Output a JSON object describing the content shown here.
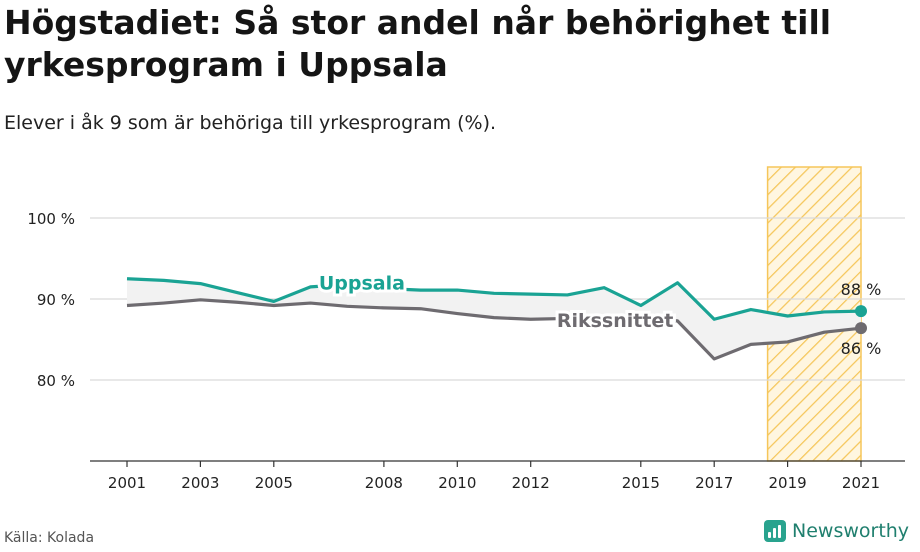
{
  "title": "Högstadiet: Så stor andel når behörighet till yrkesprogram i Uppsala",
  "subtitle": "Elever i åk 9 som är behöriga till yrkesprogram (%).",
  "source": "Källa: Kolada",
  "brand": "Newsworthy",
  "colors": {
    "uppsala": "#1aa394",
    "riket": "#6e6b70",
    "highlight": "#f5c65a",
    "grid": "#d9d9d9"
  },
  "chart_data": {
    "type": "line",
    "x": [
      2001,
      2002,
      2003,
      2004,
      2005,
      2006,
      2007,
      2008,
      2009,
      2010,
      2011,
      2012,
      2013,
      2014,
      2015,
      2016,
      2017,
      2018,
      2019,
      2020,
      2021
    ],
    "series": [
      {
        "name": "Uppsala",
        "values": [
          92.5,
          92.3,
          91.9,
          90.8,
          89.7,
          91.5,
          91.8,
          91.3,
          91.1,
          91.1,
          90.7,
          90.6,
          90.5,
          91.4,
          89.2,
          92.0,
          87.5,
          88.7,
          87.9,
          88.4,
          88.5
        ]
      },
      {
        "name": "Rikssnittet",
        "values": [
          89.2,
          89.5,
          89.9,
          89.6,
          89.2,
          89.5,
          89.1,
          88.9,
          88.8,
          88.2,
          87.7,
          87.5,
          87.6,
          87.8,
          87.5,
          87.3,
          82.6,
          84.4,
          84.7,
          85.9,
          86.4
        ]
      }
    ],
    "end_labels": [
      "88 %",
      "86 %"
    ],
    "ylim": [
      70,
      106
    ],
    "yticks": [
      80,
      90,
      100
    ],
    "ytick_labels": [
      "80 %",
      "90 %",
      "100 %"
    ],
    "xticks": [
      2001,
      2003,
      2005,
      2008,
      2010,
      2012,
      2015,
      2017,
      2019,
      2021
    ],
    "xtick_labels": [
      "2001",
      "2003",
      "2005",
      "2008",
      "2010",
      "2012",
      "2015",
      "2017",
      "2019",
      "2021"
    ],
    "highlight_range": [
      2019,
      2021
    ],
    "grid": true
  }
}
